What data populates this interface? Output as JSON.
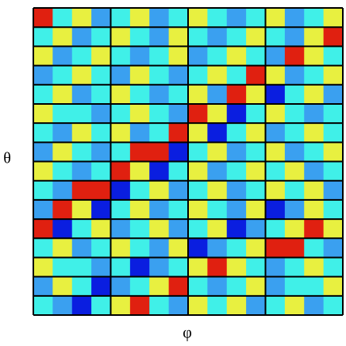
{
  "chart_data": {
    "type": "heatmap",
    "xlabel": "φ",
    "ylabel": "θ",
    "clim": [
      -2,
      2
    ],
    "colors": [
      "#0a1ee0",
      "#3aa0f0",
      "#40f0e8",
      "#e8f040",
      "#e02010"
    ],
    "z": [
      [
        2,
        0,
        1,
        -1,
        0,
        1,
        -1,
        0,
        1,
        0,
        -1,
        0,
        1,
        -1,
        0,
        1
      ],
      [
        0,
        1,
        -1,
        0,
        1,
        0,
        -1,
        1,
        0,
        -1,
        0,
        1,
        0,
        -1,
        1,
        2
      ],
      [
        1,
        -1,
        0,
        1,
        0,
        -1,
        0,
        1,
        -1,
        0,
        1,
        0,
        -1,
        2,
        1,
        0
      ],
      [
        -1,
        0,
        1,
        0,
        -1,
        1,
        0,
        -1,
        0,
        1,
        0,
        2,
        1,
        -1,
        0,
        1
      ],
      [
        0,
        1,
        -1,
        0,
        1,
        0,
        -1,
        0,
        1,
        -1,
        2,
        1,
        -2,
        0,
        1,
        -1
      ],
      [
        1,
        0,
        0,
        -1,
        0,
        1,
        0,
        -1,
        2,
        1,
        -2,
        0,
        1,
        0,
        -1,
        0
      ],
      [
        0,
        -1,
        1,
        0,
        1,
        -1,
        0,
        2,
        1,
        -2,
        0,
        1,
        -1,
        0,
        1,
        0
      ],
      [
        -1,
        1,
        0,
        -1,
        0,
        2,
        2,
        -2,
        0,
        1,
        -1,
        0,
        1,
        -1,
        0,
        1
      ],
      [
        1,
        0,
        -1,
        0,
        2,
        1,
        -2,
        0,
        1,
        -1,
        0,
        1,
        0,
        1,
        -1,
        0
      ],
      [
        0,
        -1,
        2,
        2,
        -2,
        0,
        1,
        -1,
        0,
        1,
        -1,
        0,
        1,
        0,
        1,
        -1
      ],
      [
        -1,
        2,
        1,
        -2,
        0,
        1,
        -1,
        0,
        1,
        0,
        -1,
        1,
        -2,
        -1,
        1,
        0
      ],
      [
        2,
        -2,
        0,
        1,
        -1,
        0,
        1,
        -1,
        0,
        1,
        -2,
        -1,
        0,
        1,
        2,
        1
      ],
      [
        0,
        1,
        -1,
        0,
        1,
        0,
        -1,
        1,
        -2,
        -1,
        0,
        1,
        2,
        2,
        0,
        -1
      ],
      [
        1,
        0,
        0,
        -1,
        0,
        -2,
        -1,
        0,
        1,
        2,
        1,
        0,
        -1,
        0,
        1,
        0
      ],
      [
        -1,
        1,
        0,
        -2,
        -1,
        0,
        1,
        2,
        0,
        -1,
        0,
        1,
        -1,
        0,
        0,
        1
      ],
      [
        0,
        -1,
        -2,
        0,
        1,
        2,
        0,
        -1,
        1,
        0,
        1,
        -1,
        0,
        1,
        -1,
        0
      ]
    ]
  }
}
